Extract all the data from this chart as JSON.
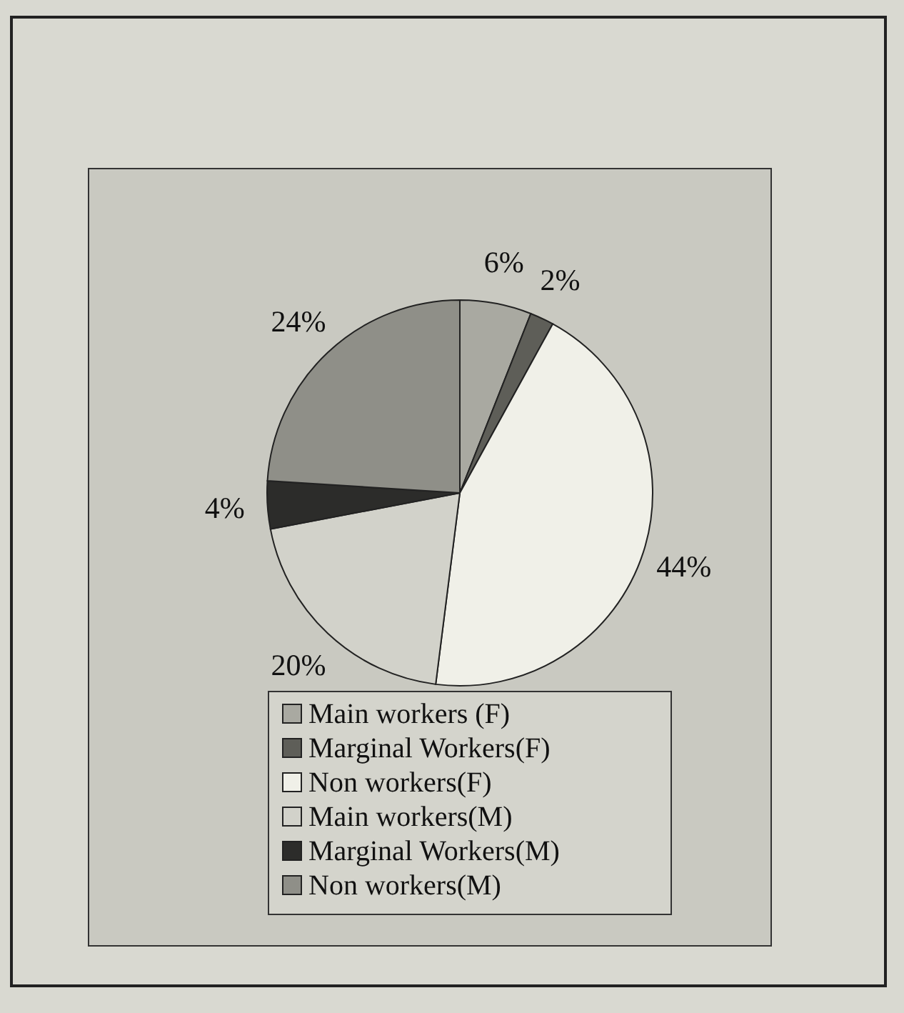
{
  "chart_data": {
    "type": "pie",
    "categories": [
      "Main workers (F)",
      "Marginal Workers(F)",
      "Non workers(F)",
      "Main workers(M)",
      "Marginal Workers(M)",
      "Non workers(M)"
    ],
    "values": [
      6,
      2,
      44,
      20,
      4,
      24
    ],
    "colors": [
      "#a9a9a1",
      "#5e5e58",
      "#f0f0e8",
      "#d2d2ca",
      "#2c2c2a",
      "#8f8f88"
    ],
    "value_labels": [
      "6%",
      "2%",
      "44%",
      "20%",
      "4%",
      "24%"
    ],
    "legend": "bottom"
  }
}
